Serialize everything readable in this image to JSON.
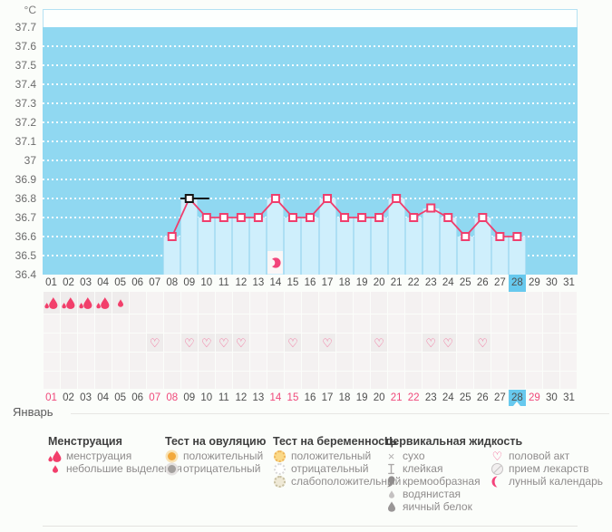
{
  "chart_data": {
    "type": "line",
    "ylabel": "°C",
    "xlabel": "Январь",
    "ylim": [
      36.4,
      37.7
    ],
    "grid": true,
    "legend_position": "bottom",
    "y_tick_labels": [
      "37.7",
      "37.6",
      "37.5",
      "37.4",
      "37.3",
      "37.2",
      "37.1",
      "37",
      "36.9",
      "36.8",
      "36.7",
      "36.6",
      "36.5",
      "36.4"
    ],
    "x_tick_labels": [
      "01",
      "02",
      "03",
      "04",
      "05",
      "06",
      "07",
      "08",
      "09",
      "10",
      "11",
      "12",
      "13",
      "14",
      "15",
      "16",
      "17",
      "18",
      "19",
      "20",
      "21",
      "22",
      "23",
      "24",
      "25",
      "26",
      "27",
      "28",
      "29",
      "30",
      "31"
    ],
    "points": [
      {
        "day": 8,
        "temp": 36.6
      },
      {
        "day": 9,
        "temp": 36.8
      },
      {
        "day": 10,
        "temp": 36.7
      },
      {
        "day": 11,
        "temp": 36.7
      },
      {
        "day": 12,
        "temp": 36.7
      },
      {
        "day": 13,
        "temp": 36.7
      },
      {
        "day": 14,
        "temp": 36.8
      },
      {
        "day": 15,
        "temp": 36.7
      },
      {
        "day": 16,
        "temp": 36.7
      },
      {
        "day": 17,
        "temp": 36.8
      },
      {
        "day": 18,
        "temp": 36.7
      },
      {
        "day": 19,
        "temp": 36.7
      },
      {
        "day": 20,
        "temp": 36.7
      },
      {
        "day": 21,
        "temp": 36.8
      },
      {
        "day": 22,
        "temp": 36.7
      },
      {
        "day": 23,
        "temp": 36.75
      },
      {
        "day": 24,
        "temp": 36.7
      },
      {
        "day": 25,
        "temp": 36.6
      },
      {
        "day": 26,
        "temp": 36.7
      },
      {
        "day": 27,
        "temp": 36.6
      },
      {
        "day": 28,
        "temp": 36.6
      }
    ],
    "cursor_day": 9,
    "highlighted_day": 28,
    "weekend_days": [
      1,
      7,
      8,
      14,
      15,
      21,
      22,
      29
    ],
    "moon_day": 14
  },
  "tracker": {
    "rows": [
      {
        "name": "menstruation",
        "entries": [
          {
            "day": 1,
            "icon": "drop-large"
          },
          {
            "day": 2,
            "icon": "drop-large"
          },
          {
            "day": 3,
            "icon": "drop-large"
          },
          {
            "day": 4,
            "icon": "drop-large"
          },
          {
            "day": 5,
            "icon": "drop-small"
          }
        ]
      },
      {
        "name": "row-2",
        "entries": []
      },
      {
        "name": "intercourse",
        "entries": [
          {
            "day": 7,
            "icon": "intercourse"
          },
          {
            "day": 9,
            "icon": "intercourse"
          },
          {
            "day": 10,
            "icon": "intercourse"
          },
          {
            "day": 11,
            "icon": "intercourse"
          },
          {
            "day": 12,
            "icon": "intercourse"
          },
          {
            "day": 15,
            "icon": "intercourse"
          },
          {
            "day": 17,
            "icon": "intercourse"
          },
          {
            "day": 20,
            "icon": "intercourse"
          },
          {
            "day": 23,
            "icon": "intercourse"
          },
          {
            "day": 24,
            "icon": "intercourse"
          },
          {
            "day": 26,
            "icon": "intercourse"
          }
        ]
      },
      {
        "name": "row-4",
        "entries": []
      },
      {
        "name": "row-5",
        "entries": []
      }
    ]
  },
  "legend": {
    "columns": [
      {
        "header": "Менструация",
        "items": [
          {
            "icon": "drop-large",
            "label": "менструация"
          },
          {
            "icon": "drop-small",
            "label": "небольшие выделения"
          }
        ]
      },
      {
        "header": "Тест на овуляцию",
        "items": [
          {
            "icon": "ovulation-positive",
            "label": "положительный"
          },
          {
            "icon": "ovulation-negative",
            "label": "отрицательный"
          }
        ]
      },
      {
        "header": "Тест на беременность",
        "items": [
          {
            "icon": "pregnancy-positive",
            "label": "положительный"
          },
          {
            "icon": "pregnancy-negative",
            "label": "отрицательный"
          },
          {
            "icon": "pregnancy-weak",
            "label": "слабоположительный"
          }
        ]
      },
      {
        "header": "Цервикальная жидкость",
        "items": [
          {
            "icon": "dry",
            "label": "сухо"
          },
          {
            "icon": "sticky",
            "label": "клейкая"
          },
          {
            "icon": "creamy",
            "label": "кремообразная"
          },
          {
            "icon": "watery",
            "label": "водянистая"
          },
          {
            "icon": "egg-white",
            "label": "яичный белок"
          }
        ]
      },
      {
        "header": "",
        "items": [
          {
            "icon": "intercourse",
            "label": "половой акт"
          },
          {
            "icon": "medication",
            "label": "прием лекарств"
          },
          {
            "icon": "lunar",
            "label": "лунный календарь"
          }
        ]
      }
    ]
  },
  "colors": {
    "plot_bg": "#90d8f1",
    "bar_fill": "#cfeffc",
    "bar_border": "#addff4",
    "line": "#ef3e6d",
    "cursor": "#141414",
    "day_highlight": "#67c9ee",
    "weekend_text": "#f0487a",
    "menstruation": "#f23f6b",
    "heart": "#f2558a",
    "ovulation_positive": "#f2a93c"
  }
}
